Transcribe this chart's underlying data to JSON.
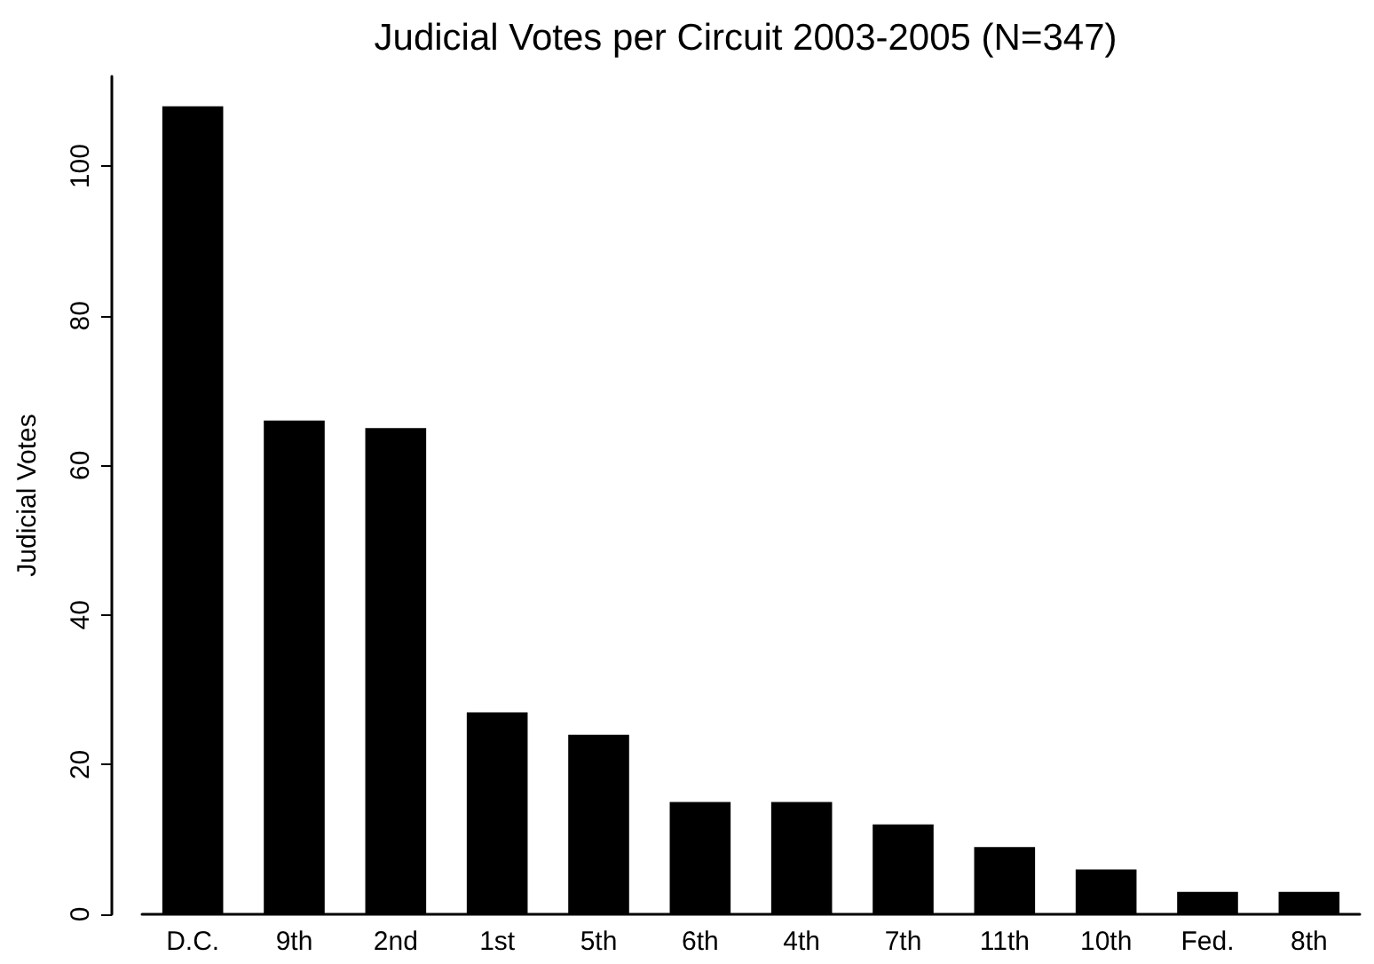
{
  "chart_data": {
    "type": "bar",
    "title": "Judicial Votes per Circuit 2003-2005 (N=347)",
    "ylabel": "Judicial Votes",
    "categories": [
      "D.C.",
      "9th",
      "2nd",
      "1st",
      "5th",
      "6th",
      "4th",
      "7th",
      "11th",
      "10th",
      "Fed.",
      "8th"
    ],
    "values": [
      108,
      66,
      65,
      27,
      24,
      15,
      15,
      12,
      9,
      6,
      3,
      3
    ],
    "color": "#000000",
    "ylim": [
      0,
      112
    ],
    "yticks": [
      0,
      20,
      40,
      60,
      80,
      100
    ],
    "grid": false
  }
}
